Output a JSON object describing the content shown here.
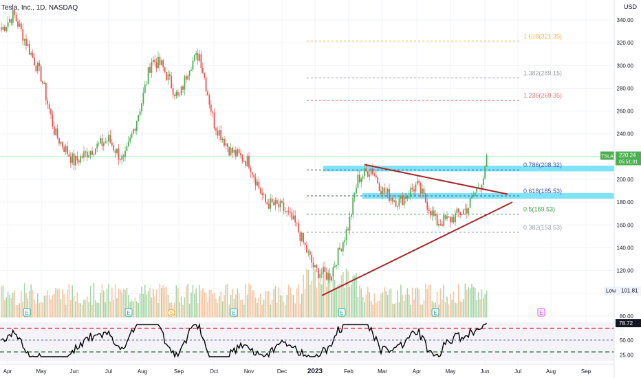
{
  "header": {
    "title": "Tesla, Inc., 1D, NASDAQ",
    "currency": "USD"
  },
  "price_axis": {
    "ticks": [
      "340.00",
      "320.00",
      "300.00",
      "280.00",
      "260.00",
      "240.00",
      "200.00",
      "180.00",
      "160.00",
      "140.00",
      "120.00",
      "100.00",
      "80.00"
    ]
  },
  "rsi_axis": {
    "ticks": [
      "50.00",
      "25.00"
    ]
  },
  "time_axis": {
    "labels": [
      "Apr",
      "May",
      "Jun",
      "Jul",
      "Aug",
      "Sep",
      "Oct",
      "Nov",
      "Dec",
      "2023",
      "Feb",
      "Mar",
      "Apr",
      "May",
      "Jun",
      "Jul",
      "Aug",
      "Sep"
    ]
  },
  "badges": {
    "symbol": "TSLA",
    "price": "220.24",
    "countdown": "05:51:01",
    "low_label": "Low",
    "low_value": "101.81",
    "rsi_value": "78.72"
  },
  "fib_levels": [
    {
      "label": "1.618(321.35)",
      "value": 321.35,
      "color": "#f5b642"
    },
    {
      "label": "1.382(289.15)",
      "value": 289.15,
      "color": "#9a9ea8"
    },
    {
      "label": "1.236(269.35)",
      "value": 269.35,
      "color": "#e57373"
    },
    {
      "label": "0.786(208.32)",
      "value": 208.32,
      "color": "#3f51b5"
    },
    {
      "label": "0.618(185.53)",
      "value": 185.53,
      "color": "#3f51b5"
    },
    {
      "label": "0.5(169.53)",
      "value": 169.53,
      "color": "#43a047"
    },
    {
      "label": "0.382(153.53)",
      "value": 153.53,
      "color": "#9a9ea8"
    }
  ],
  "event_markers": [
    "E",
    "E",
    "S",
    "E",
    "E",
    "E",
    "E",
    "E"
  ],
  "colors": {
    "up": "#4caf50",
    "down": "#ef5350",
    "zone": "#7de3f5",
    "trend": "#a8262a",
    "rsi": "#000000"
  },
  "chart_data": {
    "type": "candlestick",
    "title": "Tesla, Inc., 1D, NASDAQ",
    "price_range": [
      70,
      350
    ],
    "price_line": 220.24,
    "period_low": 101.81,
    "close_anchors": [
      [
        "Apr",
        330
      ],
      [
        "Apr (late)",
        345
      ],
      [
        "May",
        290
      ],
      [
        "May (mid)",
        240
      ],
      [
        "Jun",
        215
      ],
      [
        "Jun (mid)",
        225
      ],
      [
        "Jul",
        235
      ],
      [
        "Jul (mid)",
        215
      ],
      [
        "Aug",
        270
      ],
      [
        "Aug (mid)",
        305
      ],
      [
        "Aug (late)",
        300
      ],
      [
        "Sep",
        270
      ],
      [
        "Sep (mid)",
        300
      ],
      [
        "Sep (late)",
        310
      ],
      [
        "Oct",
        250
      ],
      [
        "Oct (mid)",
        225
      ],
      [
        "Nov",
        215
      ],
      [
        "Nov (mid)",
        180
      ],
      [
        "Dec",
        175
      ],
      [
        "Dec (mid)",
        160
      ],
      [
        "2023",
        120
      ],
      [
        "2023 (mid)",
        115
      ],
      [
        "Feb",
        160
      ],
      [
        "Feb (mid)",
        200
      ],
      [
        "Feb (late)",
        210
      ],
      [
        "Mar",
        190
      ],
      [
        "Mar (mid)",
        180
      ],
      [
        "Apr",
        195
      ],
      [
        "Apr (mid)",
        180
      ],
      [
        "Apr (late)",
        162
      ],
      [
        "May",
        165
      ],
      [
        "May (mid)",
        175
      ],
      [
        "Jun",
        205
      ],
      [
        "Jun (early)",
        220.24
      ]
    ],
    "trendlines": [
      {
        "name": "resistance",
        "from": [
          "Feb",
          213
        ],
        "to": [
          "Jun (mid)",
          187
        ]
      },
      {
        "name": "support",
        "from": [
          "2023",
          98
        ],
        "to": [
          "Jun (mid)",
          180
        ]
      }
    ],
    "zones": [
      {
        "from": [
          "Feb",
          212
        ],
        "to": [
          "Sep (end)",
          207
        ]
      },
      {
        "from": [
          "Feb (mid)",
          188
        ],
        "to": [
          "Sep (end)",
          183
        ]
      }
    ],
    "rsi": {
      "value": 78.72,
      "levels": [
        70,
        50,
        30
      ],
      "range": [
        15,
        80
      ]
    }
  }
}
